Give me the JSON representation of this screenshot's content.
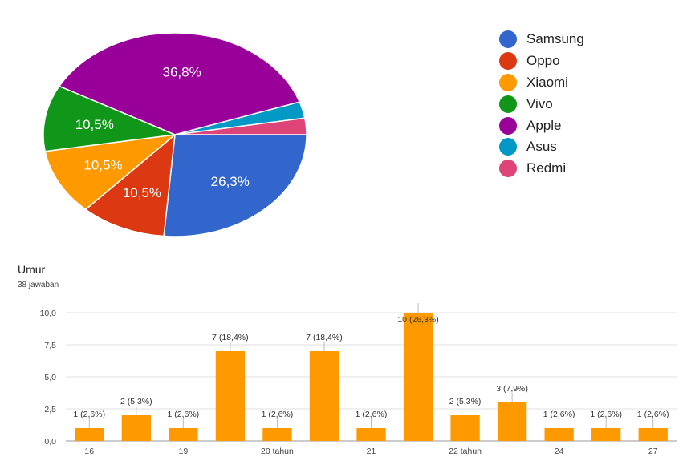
{
  "pie": {
    "chart_data": {
      "type": "pie",
      "slices": [
        {
          "name": "Samsung",
          "percent": 26.3,
          "label": "26,3%",
          "color": "#3366cc"
        },
        {
          "name": "Oppo",
          "percent": 10.5,
          "label": "10,5%",
          "color": "#dc3912"
        },
        {
          "name": "Xiaomi",
          "percent": 10.5,
          "label": "10,5%",
          "color": "#ff9900"
        },
        {
          "name": "Vivo",
          "percent": 10.5,
          "label": "10,5%",
          "color": "#109618"
        },
        {
          "name": "Apple",
          "percent": 36.8,
          "label": "36,8%",
          "color": "#990099"
        },
        {
          "name": "Asus",
          "percent": 2.6,
          "label": "",
          "color": "#0099c6"
        },
        {
          "name": "Redmi",
          "percent": 2.6,
          "label": "",
          "color": "#dd4477"
        }
      ],
      "legend_position": "right"
    }
  },
  "bar": {
    "title": "Umur",
    "subtitle": "38 jawaban",
    "color": "#ff9900",
    "chart_data": {
      "type": "bar",
      "categories": [
        "16",
        "",
        "19",
        "",
        "20 tahun",
        "",
        "21",
        "",
        "22 tahun",
        "",
        "24",
        "",
        "27"
      ],
      "values": [
        1,
        2,
        1,
        7,
        1,
        7,
        1,
        10,
        2,
        3,
        1,
        1,
        1
      ],
      "data_labels": [
        "1 (2,6%)",
        "2 (5,3%)",
        "1 (2,6%)",
        "7 (18,4%)",
        "1 (2,6%)",
        "7 (18,4%)",
        "1 (2,6%)",
        "10 (26,3%)",
        "2 (5,3%)",
        "3 (7,9%)",
        "1 (2,6%)",
        "1 (2,6%)",
        "1 (2,6%)"
      ],
      "yticks": [
        "0,0",
        "2,5",
        "5,0",
        "7,5",
        "10,0"
      ],
      "ylim": [
        0,
        10
      ],
      "grid": true
    }
  }
}
